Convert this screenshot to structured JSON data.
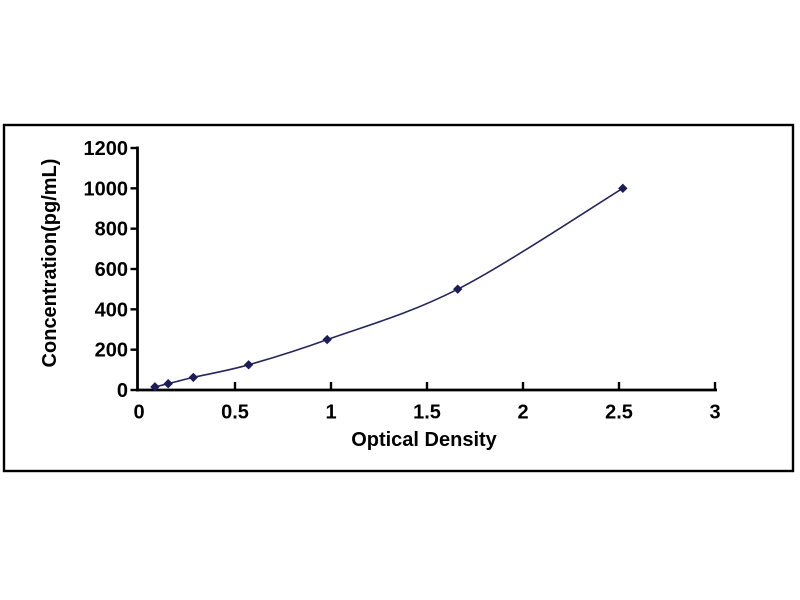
{
  "chart_data": {
    "type": "line",
    "title": "",
    "xlabel": "Optical Density",
    "ylabel": "Concentration(pg/mL)",
    "points": [
      {
        "od": 0.083,
        "concentration": 15.6
      },
      {
        "od": 0.152,
        "concentration": 31.2
      },
      {
        "od": 0.283,
        "concentration": 62.5
      },
      {
        "od": 0.571,
        "concentration": 125
      },
      {
        "od": 0.98,
        "concentration": 250
      },
      {
        "od": 1.66,
        "concentration": 500
      },
      {
        "od": 2.52,
        "concentration": 1000
      }
    ],
    "xlim": [
      0,
      3
    ],
    "ylim": [
      0,
      1200
    ],
    "xticks": [
      0,
      0.5,
      1,
      1.5,
      2,
      2.5,
      3
    ],
    "xtick_labels": [
      "0",
      "0.5",
      "1",
      "1.5",
      "2",
      "2.5",
      "3"
    ],
    "yticks": [
      0,
      200,
      400,
      600,
      800,
      1000,
      1200
    ],
    "ytick_labels": [
      "0",
      "200",
      "400",
      "600",
      "800",
      "1000",
      "1200"
    ],
    "grid": false,
    "legend": false,
    "marker_shape": "diamond",
    "colors": {
      "marker": "#1c1c58",
      "line": "#26265f",
      "axis": "#000000",
      "text": "#000000",
      "frame": "#000000",
      "background": "#ffffff"
    }
  }
}
